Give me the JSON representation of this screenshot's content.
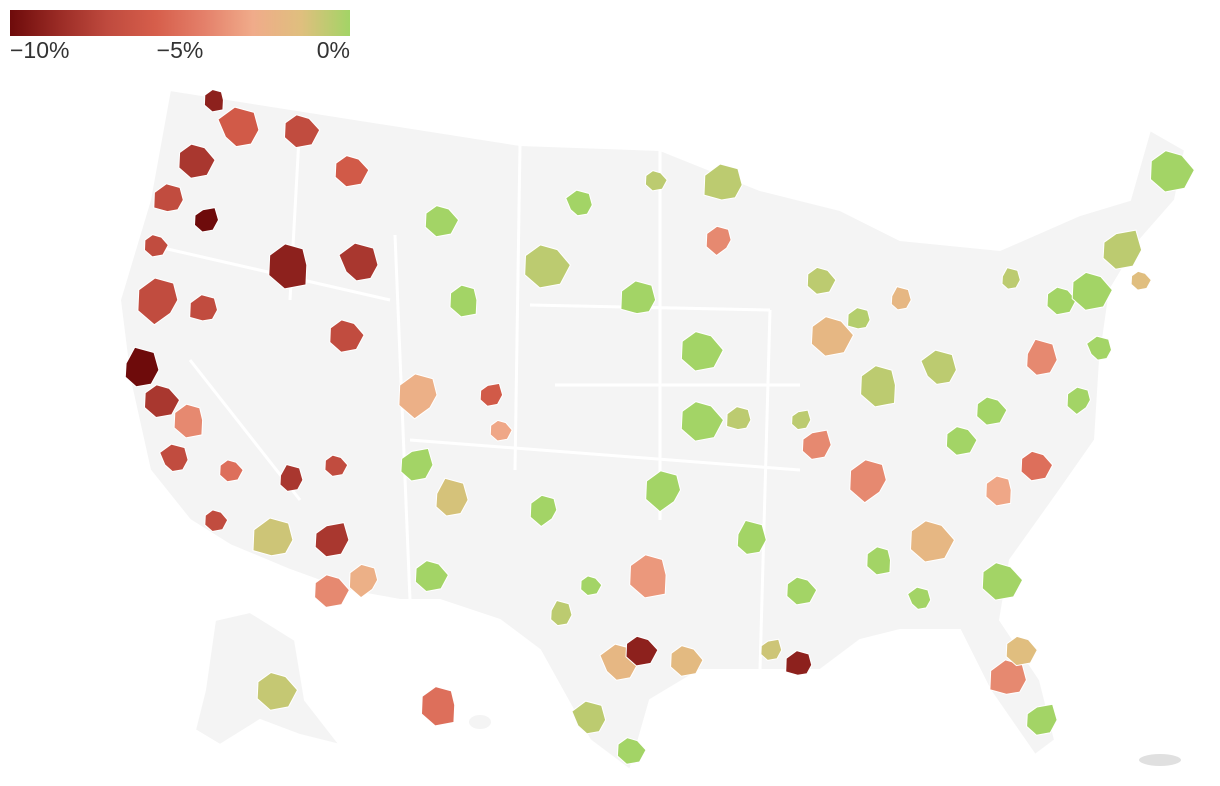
{
  "chart_data": {
    "type": "choropleth",
    "legend": {
      "range": [
        -10,
        0
      ],
      "colors": [
        "#6e0b0b",
        "#9a2b25",
        "#bf4a3e",
        "#d65e4b",
        "#e4806a",
        "#f0ab8a",
        "#dfbf7e",
        "#a3d466"
      ],
      "ticks": [
        {
          "value": -10,
          "label": "−10%"
        },
        {
          "value": -5,
          "label": "−5%"
        },
        {
          "value": 0,
          "label": "0%"
        }
      ]
    },
    "regions": {
      "values": [
        -9,
        -6,
        -7,
        -8,
        -7,
        -10,
        -7,
        -7,
        -10,
        -8,
        -4,
        -7,
        -5,
        -7,
        -1,
        -8,
        -4,
        -2.5,
        -8,
        -7,
        -9,
        -8,
        -6,
        -7,
        -7,
        -6,
        -3,
        -2.5,
        -1.2,
        0,
        0,
        0,
        -0.6,
        -0.6,
        -0.6,
        0,
        0,
        0,
        -0.6,
        0,
        -3.5,
        -2,
        -9,
        -1.8,
        -9,
        -1,
        -2,
        -4,
        -4,
        -5,
        -3,
        0,
        -1.5,
        0,
        -4,
        0,
        -1.5,
        -4,
        -2,
        -2,
        -0.6,
        -0.6,
        0,
        0,
        -0.6,
        -0.6,
        0,
        0,
        0,
        0,
        0,
        0,
        0,
        0,
        0,
        -4,
        0,
        0,
        -0.6,
        -0.8,
        -5,
        -0.6,
        0,
        -0.6,
        -0.4,
        -0.6,
        0
      ]
    }
  }
}
